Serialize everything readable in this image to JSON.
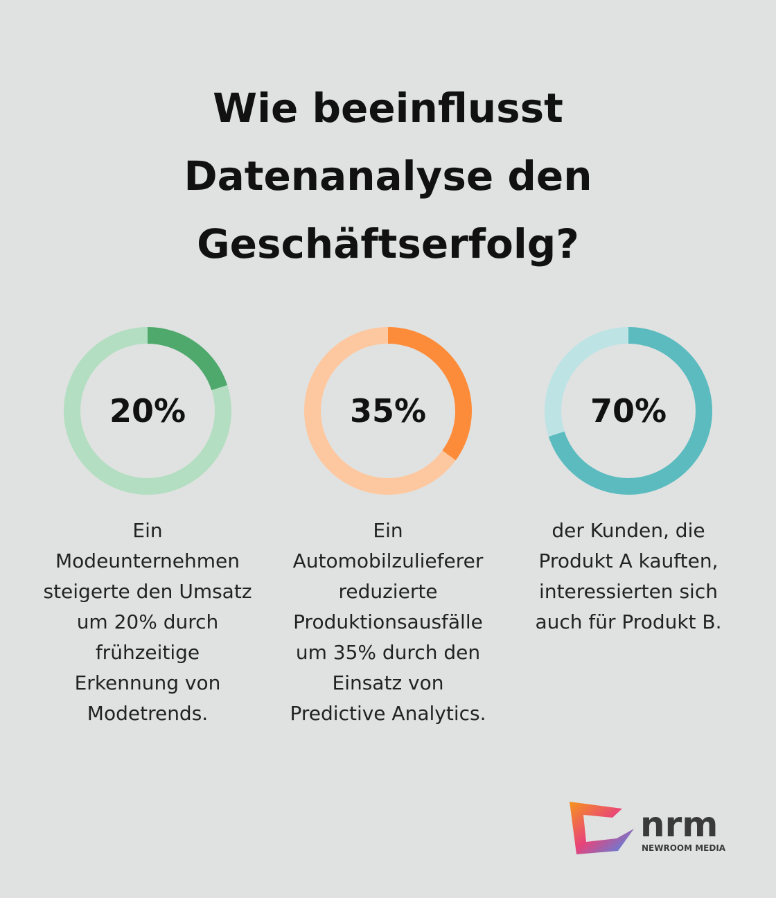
{
  "title_lines": [
    "Wie beeinflusst",
    "Datenanalyse den",
    "Geschäftserfolg?"
  ],
  "chart_data": [
    {
      "type": "donut",
      "values": [
        20
      ],
      "value_labels": [
        "20%"
      ],
      "ylim": [
        0,
        100
      ],
      "color": "#4fa86c",
      "track_color": "#b3dec1",
      "caption_lines": [
        "Ein",
        "Modeunternehmen",
        "steigerte den Umsatz",
        "um 20% durch",
        "frühzeitige",
        "Erkennung von",
        "Modetrends."
      ]
    },
    {
      "type": "donut",
      "values": [
        35
      ],
      "value_labels": [
        "35%"
      ],
      "ylim": [
        0,
        100
      ],
      "color": "#fd8c3a",
      "track_color": "#fdc8a0",
      "caption_lines": [
        "Ein",
        "Automobilzulieferer",
        "reduzierte",
        "Produktionsausfälle",
        "um 35% durch den",
        "Einsatz von",
        "Predictive Analytics."
      ]
    },
    {
      "type": "donut",
      "values": [
        70
      ],
      "value_labels": [
        "70%"
      ],
      "ylim": [
        0,
        100
      ],
      "color": "#5bbbbf",
      "track_color": "#bde3e5",
      "caption_lines": [
        "der Kunden, die",
        "Produkt A kauften,",
        "interessierten sich",
        "auch für Produkt B."
      ]
    }
  ],
  "logo": {
    "name": "nrm",
    "tagline": "NEWROOM MEDIA"
  }
}
